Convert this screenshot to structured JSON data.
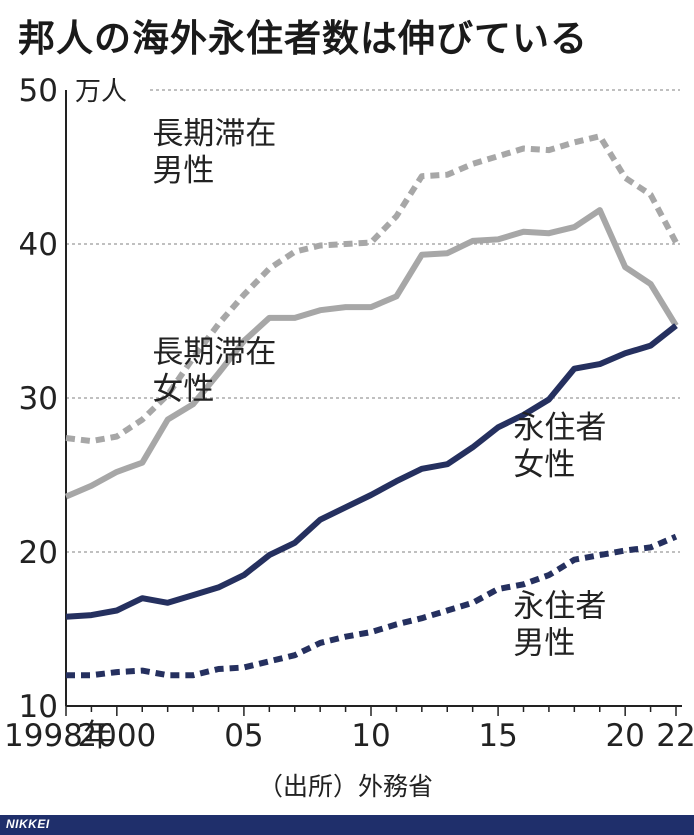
{
  "title": "邦人の海外永住者数は伸びている",
  "source": "（出所）外務省",
  "footer": "NIKKEI",
  "chart_data": {
    "type": "line",
    "unit": "万人",
    "ylim": [
      10,
      50
    ],
    "yticks": [
      10,
      20,
      30,
      40,
      50
    ],
    "xlim": [
      1998,
      2022
    ],
    "xticks": [
      {
        "x": 1998,
        "label": "1998年"
      },
      {
        "x": 2000,
        "label": "2000"
      },
      {
        "x": 2005,
        "label": "05"
      },
      {
        "x": 2010,
        "label": "10"
      },
      {
        "x": 2015,
        "label": "15"
      },
      {
        "x": 2020,
        "label": "20"
      },
      {
        "x": 2022,
        "label": "22"
      }
    ],
    "grid": true,
    "x": [
      1998,
      1999,
      2000,
      2001,
      2002,
      2003,
      2004,
      2005,
      2006,
      2007,
      2008,
      2009,
      2010,
      2011,
      2012,
      2013,
      2014,
      2015,
      2016,
      2017,
      2018,
      2019,
      2020,
      2021,
      2022
    ],
    "series": [
      {
        "name": "長期滞在男性",
        "label_lines": [
          "長期滞在",
          "男性"
        ],
        "color": "#a7a7a7",
        "dashed": true,
        "values": [
          27.4,
          27.2,
          27.5,
          28.6,
          30.2,
          32.6,
          34.8,
          36.7,
          38.4,
          39.5,
          39.9,
          40.0,
          40.1,
          41.8,
          44.4,
          44.5,
          45.2,
          45.7,
          46.2,
          46.1,
          46.6,
          47.0,
          44.3,
          43.2,
          40.1
        ]
      },
      {
        "name": "長期滞在女性",
        "label_lines": [
          "長期滞在",
          "女性"
        ],
        "color": "#a7a7a7",
        "dashed": false,
        "values": [
          23.6,
          24.3,
          25.2,
          25.8,
          28.6,
          29.6,
          31.6,
          33.7,
          35.2,
          35.2,
          35.7,
          35.9,
          35.9,
          36.6,
          39.3,
          39.4,
          40.2,
          40.3,
          40.8,
          40.7,
          41.1,
          42.2,
          38.5,
          37.4,
          34.7
        ]
      },
      {
        "name": "永住者女性",
        "label_lines": [
          "永住者",
          "女性"
        ],
        "color": "#25305f",
        "dashed": false,
        "values": [
          15.8,
          15.9,
          16.2,
          17.0,
          16.7,
          17.2,
          17.7,
          18.5,
          19.8,
          20.6,
          22.1,
          22.9,
          23.7,
          24.6,
          25.4,
          25.7,
          26.8,
          28.1,
          28.9,
          29.9,
          31.9,
          32.2,
          32.9,
          33.4,
          34.7
        ]
      },
      {
        "name": "永住者男性",
        "label_lines": [
          "永住者",
          "男性"
        ],
        "color": "#25305f",
        "dashed": true,
        "values": [
          12.0,
          12.0,
          12.2,
          12.3,
          12.0,
          12.0,
          12.4,
          12.5,
          12.9,
          13.3,
          14.1,
          14.5,
          14.8,
          15.3,
          15.7,
          16.2,
          16.7,
          17.6,
          17.9,
          18.5,
          19.5,
          19.8,
          20.1,
          20.3,
          21.0
        ]
      }
    ]
  }
}
